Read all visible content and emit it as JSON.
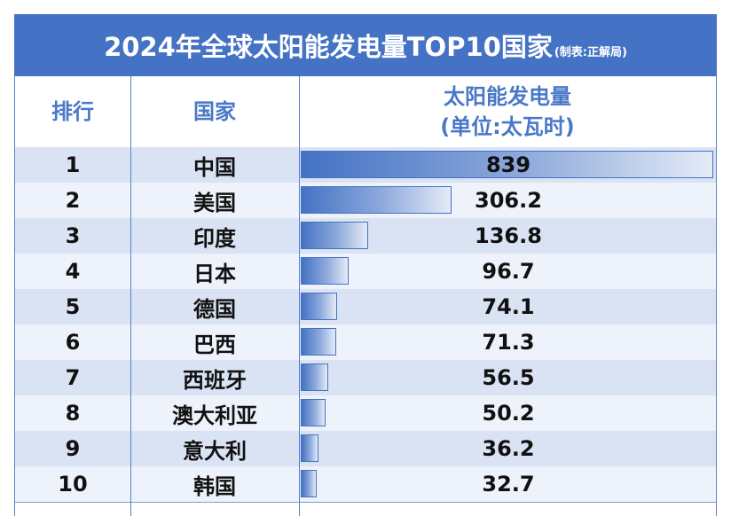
{
  "title": "2024年全球太阳能发电量TOP10国家",
  "title_note": "(制表:正解局)",
  "headers": {
    "rank": "排行",
    "country": "国家",
    "value_line1": "太阳能发电量",
    "value_line2": "(单位:太瓦时)"
  },
  "colors": {
    "accent": "#4472c4",
    "row_odd": "#dae3f3",
    "row_even": "#eef2fa"
  },
  "chart_data": {
    "type": "bar",
    "title": "2024年全球太阳能发电量TOP10国家",
    "ylabel": "太阳能发电量(单位:太瓦时)",
    "categories": [
      "中国",
      "美国",
      "印度",
      "日本",
      "德国",
      "巴西",
      "西班牙",
      "澳大利亚",
      "意大利",
      "韩国"
    ],
    "ranks": [
      "1",
      "2",
      "3",
      "4",
      "5",
      "6",
      "7",
      "8",
      "9",
      "10"
    ],
    "values": [
      839,
      306.2,
      136.8,
      96.7,
      74.1,
      71.3,
      56.5,
      50.2,
      36.2,
      32.7
    ],
    "value_labels": [
      "839",
      "306.2",
      "136.8",
      "96.7",
      "74.1",
      "71.3",
      "56.5",
      "50.2",
      "36.2",
      "32.7"
    ],
    "xlim": [
      0,
      839
    ]
  }
}
